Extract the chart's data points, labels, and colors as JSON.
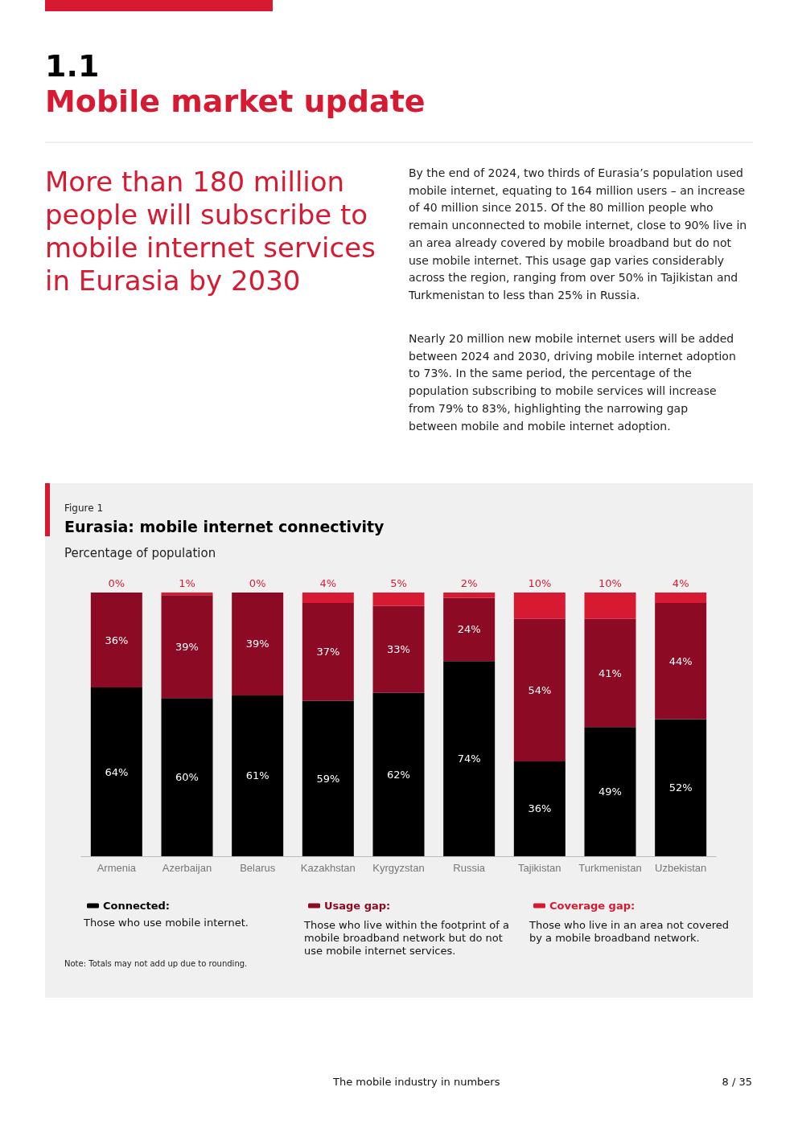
{
  "chart_data": {
    "type": "bar",
    "title": "Eurasia: mobile internet connectivity",
    "subtitle": "Percentage of population",
    "categories": [
      "Armenia",
      "Azerbaijan",
      "Belarus",
      "Kazakhstan",
      "Kyrgyzstan",
      "Russia",
      "Tajikistan",
      "Turkmenistan",
      "Uzbekistan"
    ],
    "series": [
      {
        "name": "Connected:",
        "color": "#000000",
        "values": [
          64,
          60,
          61,
          59,
          62,
          74,
          36,
          49,
          52
        ],
        "value_labels": [
          "64%",
          "60%",
          "61%",
          "59%",
          "62%",
          "74%",
          "36%",
          "49%",
          "52%"
        ]
      },
      {
        "name": "Usage gap:",
        "color": "#8c0a24",
        "values": [
          36,
          39,
          39,
          37,
          33,
          24,
          54,
          41,
          44
        ],
        "value_labels": [
          "36%",
          "39%",
          "39%",
          "37%",
          "33%",
          "24%",
          "54%",
          "41%",
          "44%"
        ]
      },
      {
        "name": "Coverage gap:",
        "color": "#d71a32",
        "values": [
          0,
          1,
          0,
          4,
          5,
          2,
          10,
          10,
          4
        ],
        "value_labels": [
          "0%",
          "1%",
          "0%",
          "4%",
          "5%",
          "2%",
          "10%",
          "10%",
          "4%"
        ]
      }
    ],
    "stacked": true,
    "legend": "bottom",
    "annotations": [
      "1.1",
      "Mobile market update",
      "More than 180 million people will subscribe to mobile internet services in Eurasia by 2030",
      "By the end of 2024, two thirds of Eurasia’s population used mobile internet, equating to 164 million users – an increase of 40 million since 2015. Of the 80 million people who remain unconnected to mobile internet, close to 90% live in an area already covered by mobile broadband but do not use mobile internet. This usage gap varies considerably across the region, ranging from over 50% in Tajikistan and Turkmenistan to less than 25% in Russia.",
      "Nearly 20 million new mobile internet users will be added between 2024 and 2030, driving mobile internet adoption to 73%. In the same period, the percentage of the population subscribing to mobile services will increase from 79% to 83%, highlighting the narrowing gap between mobile and mobile internet adoption.",
      "Figure 1",
      "Those who use mobile internet.",
      "Those who live within the footprint of a mobile broadband network but do not use mobile internet services.",
      "Those who live in an area not covered by a mobile broadband network.",
      "Note: Totals may not add up due to rounding.",
      "The mobile industry in numbers",
      "8 / 35"
    ]
  }
}
